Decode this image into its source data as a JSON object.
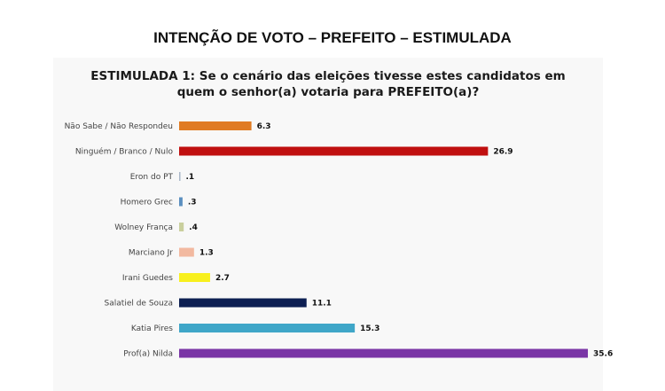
{
  "header": {
    "title": "INTENÇÃO DE VOTO – PREFEITO – ESTIMULADA"
  },
  "chart_data": {
    "type": "bar",
    "orientation": "horizontal",
    "title_lines": [
      "ESTIMULADA 1: Se o cenário das eleições tivesse estes candidatos em",
      "quem o senhor(a) votaria para PREFEITO(a)?"
    ],
    "categories": [
      "Não Sabe / Não Respondeu",
      "Ninguém / Branco / Nulo",
      "Eron do PT",
      "Homero Grec",
      "Wolney França",
      "Marciano Jr",
      "Irani Guedes",
      "Salatiel de Souza",
      "Katia Pires",
      "Prof(a) Nilda"
    ],
    "values": [
      6.3,
      26.9,
      0.1,
      0.3,
      0.4,
      1.3,
      2.7,
      11.1,
      15.3,
      35.6
    ],
    "value_labels": [
      "6.3",
      "26.9",
      ".1",
      ".3",
      ".4",
      "1.3",
      "2.7",
      "11.1",
      "15.3",
      "35.6"
    ],
    "colors": [
      "#e07b22",
      "#c00f0f",
      "#a9b7c9",
      "#5b8fc0",
      "#c9cf9d",
      "#f2b9a0",
      "#f8f01e",
      "#0d1f52",
      "#3fa6c8",
      "#7a35a6"
    ],
    "xlim": [
      0,
      40
    ],
    "grid": false,
    "legend": "none"
  }
}
